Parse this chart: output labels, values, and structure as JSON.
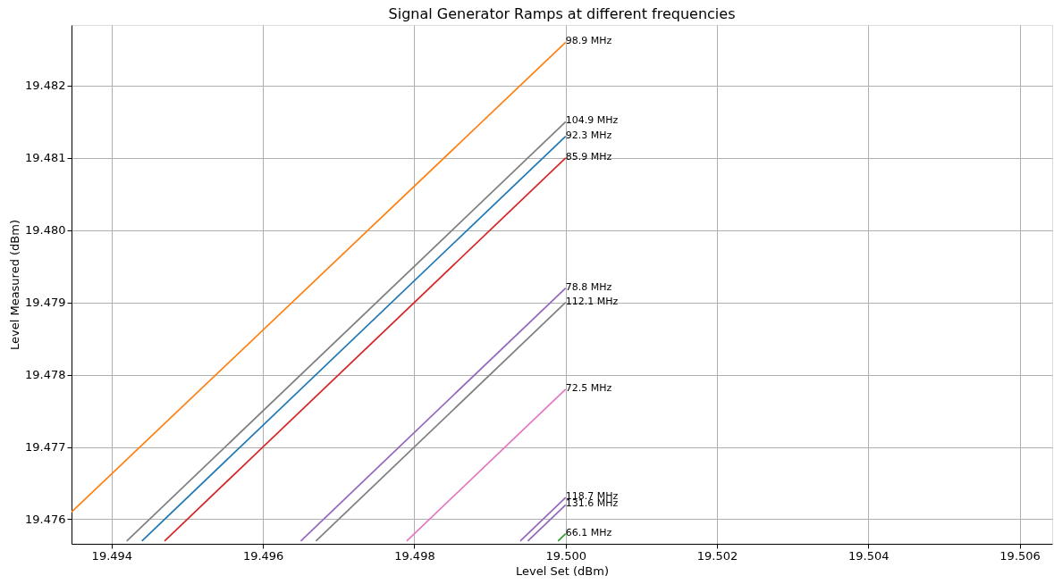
{
  "chart_data": {
    "type": "line",
    "title": "Signal Generator Ramps at different frequencies",
    "xlabel": "Level Set (dBm)",
    "ylabel": "Level Measured (dBm)",
    "xlim": [
      19.49347,
      19.50643
    ],
    "ylim": [
      19.47566,
      19.48284
    ],
    "xticks": [
      19.494,
      19.496,
      19.498,
      {
        "value": 19.5,
        "label": "19.500"
      },
      19.502,
      19.504,
      19.506
    ],
    "yticks": [
      19.476,
      19.477,
      19.478,
      19.479,
      {
        "value": 19.48,
        "label": "19.480"
      },
      19.481,
      19.482
    ],
    "grid": true,
    "marker": "none",
    "line_style": "solid",
    "legend": false,
    "series": [
      {
        "name": "98.9 MHz",
        "color": "#ff7f0e",
        "x": [
          19.49347,
          19.5
        ],
        "values": [
          19.4761,
          19.4826
        ]
      },
      {
        "name": "104.9 MHz",
        "color": "#7f7f7f",
        "x": [
          19.4942,
          19.5
        ],
        "values": [
          19.4757,
          19.4815
        ]
      },
      {
        "name": "92.3 MHz",
        "color": "#1f77b4",
        "x": [
          19.4944,
          19.5
        ],
        "values": [
          19.4757,
          19.4813
        ]
      },
      {
        "name": "85.9 MHz",
        "color": "#d62728",
        "x": [
          19.4947,
          19.5
        ],
        "values": [
          19.4757,
          19.481
        ]
      },
      {
        "name": "78.8 MHz",
        "color": "#9467bd",
        "x": [
          19.4965,
          19.5
        ],
        "values": [
          19.4757,
          19.4792
        ]
      },
      {
        "name": "112.1 MHz",
        "color": "#7f7f7f",
        "x": [
          19.4967,
          19.5
        ],
        "values": [
          19.4757,
          19.479
        ]
      },
      {
        "name": "72.5 MHz",
        "color": "#e377c2",
        "x": [
          19.4979,
          19.5
        ],
        "values": [
          19.4757,
          19.4778
        ]
      },
      {
        "name": "118.7 MHz",
        "color": "#9467bd",
        "x": [
          19.4994,
          19.5
        ],
        "values": [
          19.4757,
          19.4763
        ]
      },
      {
        "name": "131.6 MHz",
        "color": "#9467bd",
        "x": [
          19.4995,
          19.5
        ],
        "values": [
          19.4757,
          19.4762
        ]
      },
      {
        "name": "66.1 MHz",
        "color": "#2ca02c",
        "x": [
          19.4999,
          19.5
        ],
        "values": [
          19.4757,
          19.4758
        ]
      }
    ]
  }
}
